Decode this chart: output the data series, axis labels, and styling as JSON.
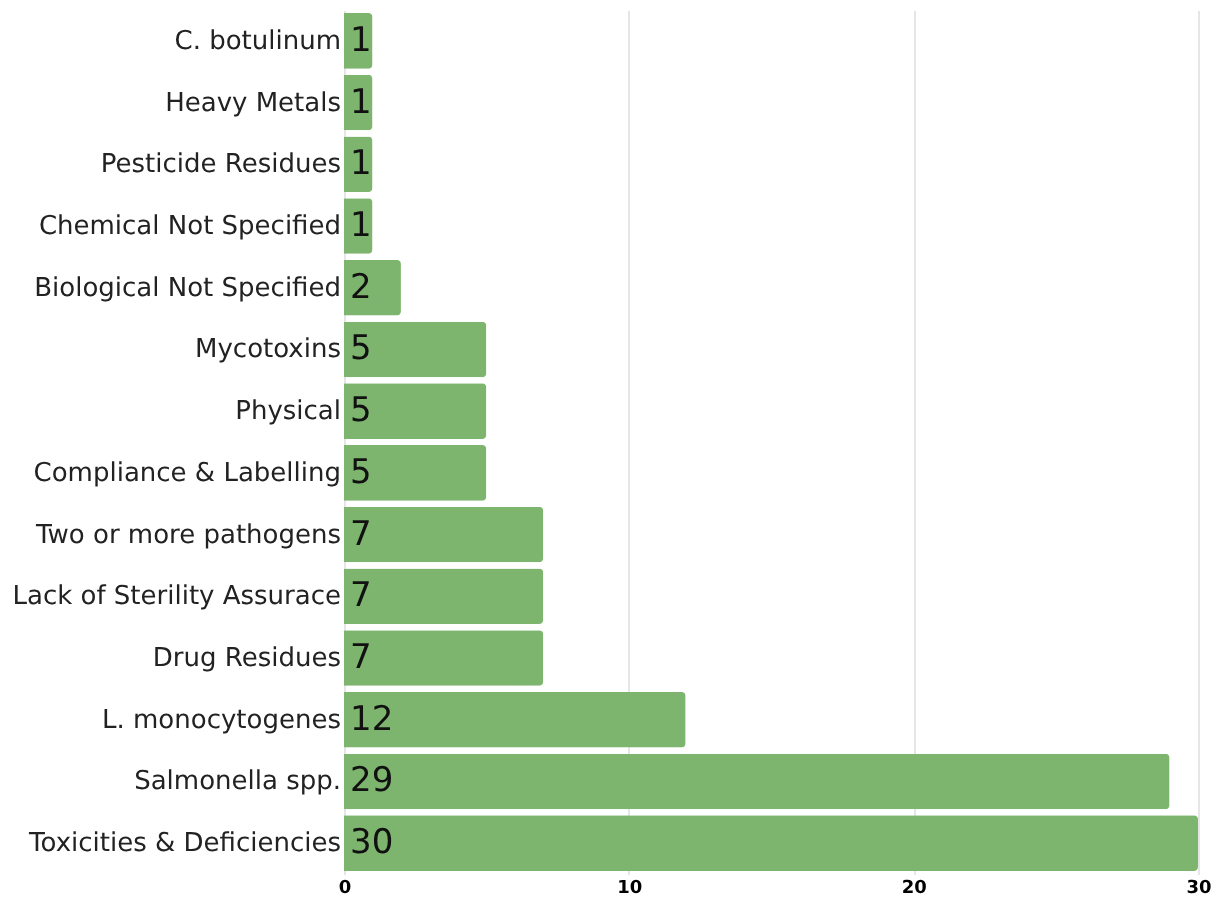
{
  "chart_data": {
    "type": "bar",
    "orientation": "horizontal",
    "categories": [
      "C. botulinum",
      "Heavy Metals",
      "Pesticide Residues",
      "Chemical Not Specified",
      "Biological Not Specified",
      "Mycotoxins",
      "Physical",
      "Compliance & Labelling",
      "Two or more pathogens",
      "Lack of Sterility Assurace",
      "Drug Residues",
      "L. monocytogenes",
      "Salmonella spp.",
      "Toxicities & Deficiencies"
    ],
    "values": [
      1,
      1,
      1,
      1,
      2,
      5,
      5,
      5,
      7,
      7,
      7,
      12,
      29,
      30
    ],
    "color": "#7db56f",
    "xlim": [
      0,
      30
    ],
    "xticks": [
      0,
      10,
      20,
      30
    ],
    "grid": "x",
    "data_labels": true
  }
}
